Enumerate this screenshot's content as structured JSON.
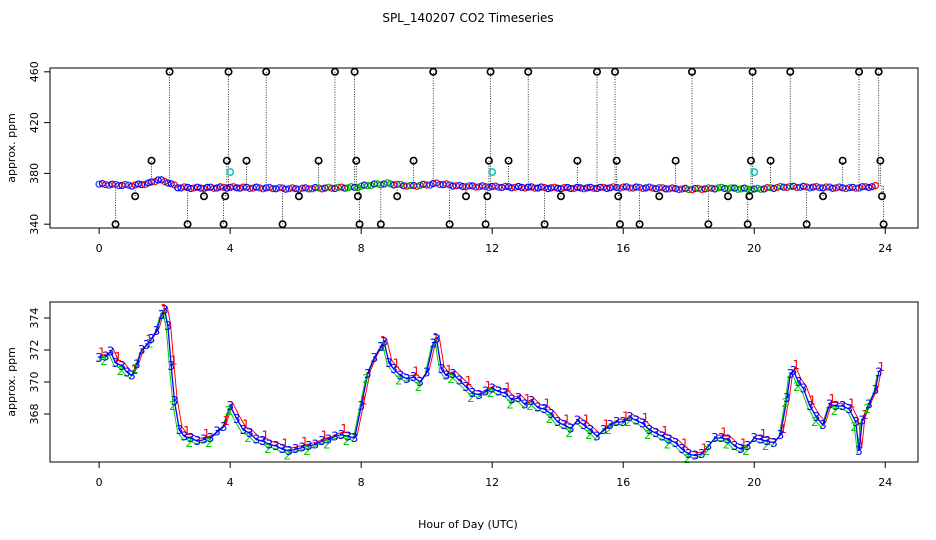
{
  "chart_data": {
    "title": "SPL_140207  CO2 Timeseries",
    "xlabel": "Hour of Day (UTC)",
    "panels": [
      {
        "id": "top",
        "type": "scatter",
        "ylabel": "approx. ppm",
        "xlim": [
          -1.5,
          25
        ],
        "ylim": [
          337,
          463
        ],
        "xticks": [
          0,
          4,
          8,
          12,
          16,
          20,
          24
        ],
        "yticks": [
          340,
          380,
          420,
          460
        ],
        "baseline": [
          [
            0,
            371.5
          ],
          [
            0.5,
            371
          ],
          [
            1,
            370.5
          ],
          [
            1.5,
            372
          ],
          [
            1.8,
            375
          ],
          [
            2.1,
            373
          ],
          [
            2.4,
            369
          ],
          [
            3,
            368.5
          ],
          [
            4,
            369
          ],
          [
            5,
            368.5
          ],
          [
            6,
            368
          ],
          [
            7,
            368.5
          ],
          [
            7.8,
            369
          ],
          [
            8.3,
            371
          ],
          [
            8.8,
            372
          ],
          [
            9.5,
            370
          ],
          [
            10,
            371
          ],
          [
            10.3,
            372
          ],
          [
            11,
            370
          ],
          [
            12,
            369.5
          ],
          [
            13,
            369
          ],
          [
            14,
            368.5
          ],
          [
            15,
            368.5
          ],
          [
            16,
            369
          ],
          [
            17,
            368.5
          ],
          [
            18,
            367.5
          ],
          [
            19,
            368.5
          ],
          [
            20,
            367.5
          ],
          [
            21,
            369.5
          ],
          [
            22,
            369
          ],
          [
            23,
            368.5
          ],
          [
            23.8,
            370
          ]
        ],
        "outliers": [
          {
            "x": 0.5,
            "y": 340
          },
          {
            "x": 1.1,
            "y": 362
          },
          {
            "x": 1.6,
            "y": 390
          },
          {
            "x": 2.15,
            "y": 460
          },
          {
            "x": 2.7,
            "y": 340
          },
          {
            "x": 3.2,
            "y": 362
          },
          {
            "x": 3.8,
            "y": 340
          },
          {
            "x": 3.85,
            "y": 362
          },
          {
            "x": 3.9,
            "y": 390
          },
          {
            "x": 3.95,
            "y": 460
          },
          {
            "x": 4.5,
            "y": 390
          },
          {
            "x": 5.1,
            "y": 460
          },
          {
            "x": 5.6,
            "y": 340
          },
          {
            "x": 6.1,
            "y": 362
          },
          {
            "x": 6.7,
            "y": 390
          },
          {
            "x": 7.2,
            "y": 460
          },
          {
            "x": 7.8,
            "y": 460
          },
          {
            "x": 7.85,
            "y": 390
          },
          {
            "x": 7.9,
            "y": 362
          },
          {
            "x": 7.95,
            "y": 340
          },
          {
            "x": 8.6,
            "y": 340
          },
          {
            "x": 9.1,
            "y": 362
          },
          {
            "x": 9.6,
            "y": 390
          },
          {
            "x": 10.2,
            "y": 460
          },
          {
            "x": 10.7,
            "y": 340
          },
          {
            "x": 11.2,
            "y": 362
          },
          {
            "x": 11.8,
            "y": 340
          },
          {
            "x": 11.85,
            "y": 362
          },
          {
            "x": 11.9,
            "y": 390
          },
          {
            "x": 11.95,
            "y": 460
          },
          {
            "x": 12.5,
            "y": 390
          },
          {
            "x": 13.1,
            "y": 460
          },
          {
            "x": 13.6,
            "y": 340
          },
          {
            "x": 14.1,
            "y": 362
          },
          {
            "x": 14.6,
            "y": 390
          },
          {
            "x": 15.2,
            "y": 460
          },
          {
            "x": 15.75,
            "y": 460
          },
          {
            "x": 15.8,
            "y": 390
          },
          {
            "x": 15.85,
            "y": 362
          },
          {
            "x": 15.9,
            "y": 340
          },
          {
            "x": 16.5,
            "y": 340
          },
          {
            "x": 17.1,
            "y": 362
          },
          {
            "x": 17.6,
            "y": 390
          },
          {
            "x": 18.1,
            "y": 460
          },
          {
            "x": 18.6,
            "y": 340
          },
          {
            "x": 19.2,
            "y": 362
          },
          {
            "x": 19.8,
            "y": 340
          },
          {
            "x": 19.85,
            "y": 362
          },
          {
            "x": 19.9,
            "y": 390
          },
          {
            "x": 19.95,
            "y": 460
          },
          {
            "x": 20.5,
            "y": 390
          },
          {
            "x": 21.1,
            "y": 460
          },
          {
            "x": 21.6,
            "y": 340
          },
          {
            "x": 22.1,
            "y": 362
          },
          {
            "x": 22.7,
            "y": 390
          },
          {
            "x": 23.2,
            "y": 460
          },
          {
            "x": 23.8,
            "y": 460
          },
          {
            "x": 23.85,
            "y": 390
          },
          {
            "x": 23.9,
            "y": 362
          },
          {
            "x": 23.95,
            "y": 340
          }
        ],
        "cyan_points": [
          {
            "x": 4.0,
            "y": 381
          },
          {
            "x": 12.0,
            "y": 381
          },
          {
            "x": 20.0,
            "y": 381
          }
        ]
      },
      {
        "id": "bottom",
        "type": "line",
        "ylabel": "approx. ppm",
        "xlim": [
          -1.5,
          25
        ],
        "ylim": [
          365,
          375
        ],
        "xticks": [
          0,
          4,
          8,
          12,
          16,
          20,
          24
        ],
        "yticks": [
          368,
          370,
          372,
          374
        ],
        "series_labels": [
          "1",
          "2",
          "3"
        ],
        "series_colors": [
          "#ff0000",
          "#00cc00",
          "#0000ff"
        ],
        "series": [
          [
            0,
            371.5
          ],
          [
            0.2,
            371.6
          ],
          [
            0.35,
            371.9
          ],
          [
            0.5,
            371.2
          ],
          [
            0.7,
            371.0
          ],
          [
            0.85,
            370.6
          ],
          [
            1.0,
            370.4
          ],
          [
            1.15,
            371.1
          ],
          [
            1.3,
            372.0
          ],
          [
            1.45,
            372.3
          ],
          [
            1.6,
            372.7
          ],
          [
            1.75,
            373.2
          ],
          [
            1.9,
            374.2
          ],
          [
            2.0,
            374.5
          ],
          [
            2.1,
            373.5
          ],
          [
            2.2,
            371.0
          ],
          [
            2.3,
            368.8
          ],
          [
            2.45,
            367.0
          ],
          [
            2.6,
            366.6
          ],
          [
            2.8,
            366.5
          ],
          [
            3.0,
            366.3
          ],
          [
            3.2,
            366.4
          ],
          [
            3.4,
            366.5
          ],
          [
            3.6,
            366.9
          ],
          [
            3.8,
            367.2
          ],
          [
            4.0,
            368.5
          ],
          [
            4.2,
            367.7
          ],
          [
            4.4,
            367.0
          ],
          [
            4.6,
            366.8
          ],
          [
            4.8,
            366.4
          ],
          [
            5.0,
            366.3
          ],
          [
            5.2,
            366.1
          ],
          [
            5.4,
            366.0
          ],
          [
            5.6,
            365.8
          ],
          [
            5.8,
            365.7
          ],
          [
            6.0,
            365.8
          ],
          [
            6.2,
            365.9
          ],
          [
            6.4,
            366.0
          ],
          [
            6.6,
            366.1
          ],
          [
            6.8,
            366.3
          ],
          [
            7.0,
            366.4
          ],
          [
            7.2,
            366.6
          ],
          [
            7.4,
            366.7
          ],
          [
            7.6,
            366.6
          ],
          [
            7.8,
            366.5
          ],
          [
            8.0,
            368.5
          ],
          [
            8.2,
            370.5
          ],
          [
            8.4,
            371.5
          ],
          [
            8.6,
            372.2
          ],
          [
            8.7,
            372.5
          ],
          [
            8.85,
            371.2
          ],
          [
            9.0,
            370.8
          ],
          [
            9.2,
            370.4
          ],
          [
            9.4,
            370.2
          ],
          [
            9.6,
            370.3
          ],
          [
            9.8,
            370.0
          ],
          [
            10.0,
            370.6
          ],
          [
            10.2,
            372.4
          ],
          [
            10.3,
            372.7
          ],
          [
            10.45,
            370.8
          ],
          [
            10.6,
            370.4
          ],
          [
            10.8,
            370.5
          ],
          [
            11.0,
            370.1
          ],
          [
            11.2,
            369.7
          ],
          [
            11.4,
            369.3
          ],
          [
            11.6,
            369.2
          ],
          [
            11.8,
            369.4
          ],
          [
            12.0,
            369.6
          ],
          [
            12.2,
            369.4
          ],
          [
            12.4,
            369.3
          ],
          [
            12.6,
            368.9
          ],
          [
            12.8,
            369.0
          ],
          [
            13.0,
            368.6
          ],
          [
            13.2,
            368.8
          ],
          [
            13.4,
            368.4
          ],
          [
            13.6,
            368.3
          ],
          [
            13.8,
            368.0
          ],
          [
            14.0,
            367.5
          ],
          [
            14.2,
            367.3
          ],
          [
            14.4,
            367.1
          ],
          [
            14.6,
            367.6
          ],
          [
            14.8,
            367.3
          ],
          [
            15.0,
            367.0
          ],
          [
            15.2,
            366.6
          ],
          [
            15.4,
            367.0
          ],
          [
            15.6,
            367.3
          ],
          [
            15.8,
            367.5
          ],
          [
            16.0,
            367.5
          ],
          [
            16.2,
            367.8
          ],
          [
            16.4,
            367.6
          ],
          [
            16.6,
            367.4
          ],
          [
            16.8,
            367.0
          ],
          [
            17.0,
            366.8
          ],
          [
            17.2,
            366.6
          ],
          [
            17.4,
            366.4
          ],
          [
            17.6,
            366.2
          ],
          [
            17.8,
            365.8
          ],
          [
            18.0,
            365.5
          ],
          [
            18.2,
            365.4
          ],
          [
            18.4,
            365.5
          ],
          [
            18.6,
            366.0
          ],
          [
            18.8,
            366.5
          ],
          [
            19.0,
            366.5
          ],
          [
            19.2,
            366.4
          ],
          [
            19.4,
            366.0
          ],
          [
            19.6,
            365.8
          ],
          [
            19.8,
            366.0
          ],
          [
            20.0,
            366.5
          ],
          [
            20.2,
            366.4
          ],
          [
            20.4,
            366.3
          ],
          [
            20.6,
            366.2
          ],
          [
            20.8,
            366.7
          ],
          [
            21.0,
            369.0
          ],
          [
            21.1,
            370.5
          ],
          [
            21.2,
            370.7
          ],
          [
            21.35,
            370.0
          ],
          [
            21.5,
            369.6
          ],
          [
            21.7,
            368.5
          ],
          [
            21.9,
            367.8
          ],
          [
            22.1,
            367.3
          ],
          [
            22.3,
            368.6
          ],
          [
            22.5,
            368.5
          ],
          [
            22.7,
            368.5
          ],
          [
            22.9,
            368.3
          ],
          [
            23.1,
            367.5
          ],
          [
            23.2,
            365.7
          ],
          [
            23.3,
            367.6
          ],
          [
            23.5,
            368.6
          ],
          [
            23.7,
            369.5
          ],
          [
            23.8,
            370.6
          ]
        ]
      }
    ]
  }
}
